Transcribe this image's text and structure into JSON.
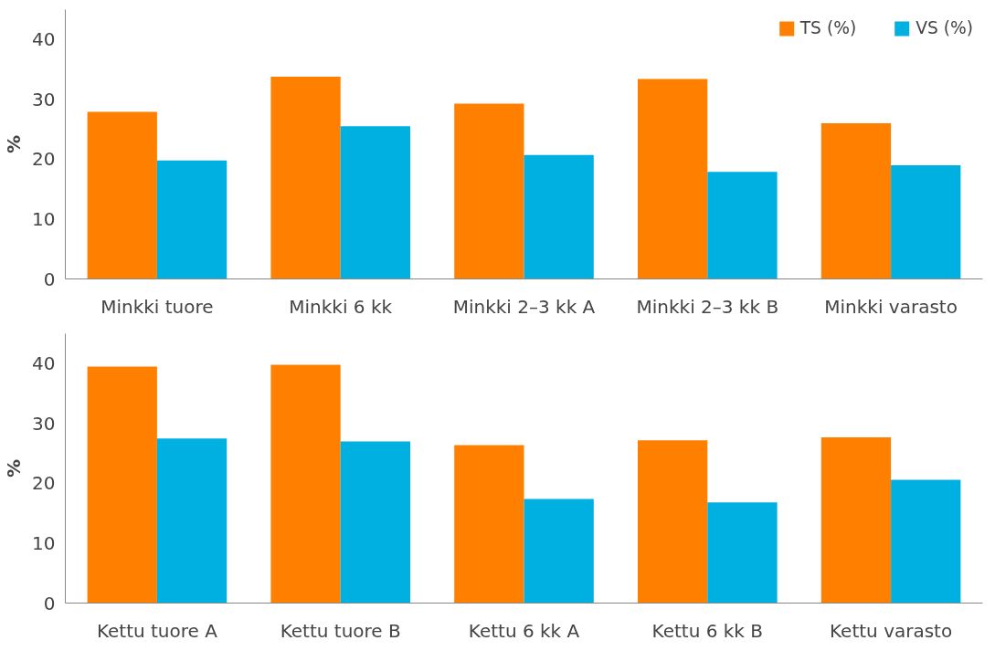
{
  "chart_data": [
    {
      "type": "bar",
      "ylabel": "%",
      "categories": [
        "Minkki tuore",
        "Minkki 6 kk",
        "Minkki 2–3 kk A",
        "Minkki 2–3 kk B",
        "Minkki varasto"
      ],
      "series": [
        {
          "name": "TS (%)",
          "color": "#ff8000",
          "values": [
            27.9,
            33.8,
            29.3,
            33.4,
            26.0
          ]
        },
        {
          "name": "VS (%)",
          "color": "#00b0e0",
          "values": [
            19.8,
            25.5,
            20.7,
            17.9,
            19.0
          ]
        }
      ],
      "ylim": [
        0,
        45
      ],
      "yticks": [
        0,
        10,
        20,
        30,
        40
      ],
      "grid": false,
      "legend": "top right"
    },
    {
      "type": "bar",
      "ylabel": "%",
      "categories": [
        "Kettu tuore A",
        "Kettu tuore B",
        "Kettu 6 kk A",
        "Kettu 6 kk B",
        "Kettu varasto"
      ],
      "series": [
        {
          "color": "#ff8000",
          "values": [
            39.5,
            39.8,
            26.4,
            27.2,
            27.7
          ]
        },
        {
          "color": "#00b0e0",
          "values": [
            27.5,
            27.0,
            17.4,
            16.8,
            20.6
          ]
        }
      ],
      "ylim": [
        0,
        45
      ],
      "yticks": [
        0,
        10,
        20,
        30,
        40
      ],
      "grid": false
    }
  ]
}
